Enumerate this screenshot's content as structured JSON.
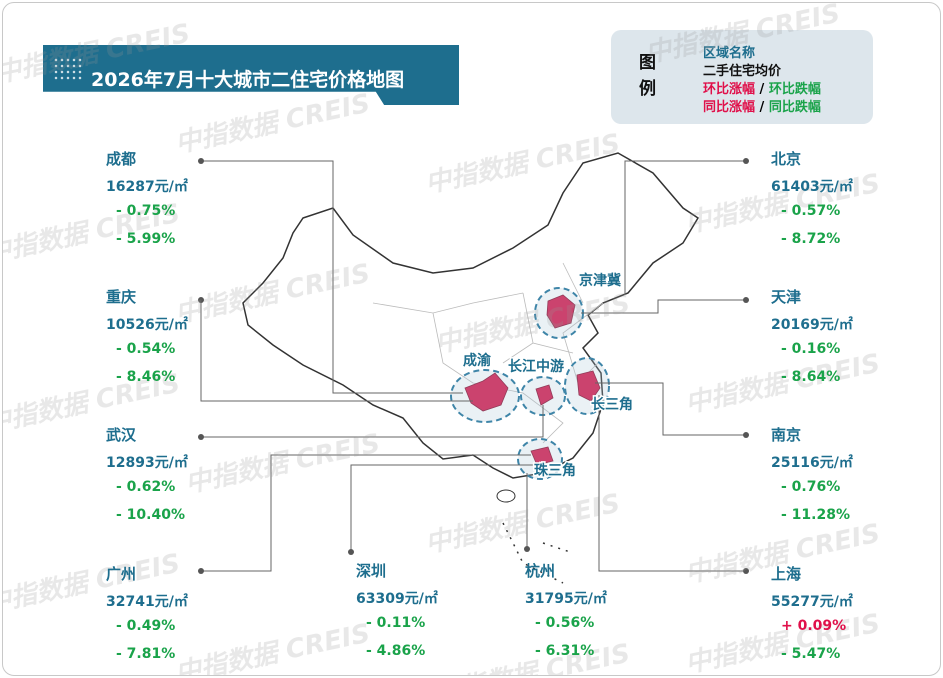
{
  "title": "2026年7月十大城市二住宅价格地图",
  "legend": {
    "heading": [
      "图",
      "例"
    ],
    "region_name": "区域名称",
    "avg_price": "二手住宅均价",
    "separator": "/",
    "mom_up": "环比涨幅",
    "mom_down": "环比跌幅",
    "yoy_up": "同比涨幅",
    "yoy_down": "同比跌幅"
  },
  "regions": [
    "京津冀",
    "成渝",
    "长江中游",
    "长三角",
    "珠三角"
  ],
  "watermark": "中指数据 CREIS",
  "cities": [
    {
      "name": "成都",
      "price": "16287元/㎡",
      "mom": "- 0.75%",
      "yoy": "- 5.99%"
    },
    {
      "name": "重庆",
      "price": "10526元/㎡",
      "mom": "- 0.54%",
      "yoy": "- 8.46%"
    },
    {
      "name": "武汉",
      "price": "12893元/㎡",
      "mom": "- 0.62%",
      "yoy": "- 10.40%"
    },
    {
      "name": "广州",
      "price": "32741元/㎡",
      "mom": "- 0.49%",
      "yoy": "- 7.81%"
    },
    {
      "name": "深圳",
      "price": "63309元/㎡",
      "mom": "- 0.11%",
      "yoy": "- 4.86%"
    },
    {
      "name": "杭州",
      "price": "31795元/㎡",
      "mom": "- 0.56%",
      "yoy": "- 6.31%"
    },
    {
      "name": "上海",
      "price": "55277元/㎡",
      "mom": "+ 0.09%",
      "yoy": "- 5.47%"
    },
    {
      "name": "南京",
      "price": "25116元/㎡",
      "mom": "- 0.76%",
      "yoy": "- 11.28%"
    },
    {
      "name": "天津",
      "price": "20169元/㎡",
      "mom": "- 0.16%",
      "yoy": "- 8.64%"
    },
    {
      "name": "北京",
      "price": "61403元/㎡",
      "mom": "- 0.57%",
      "yoy": "- 8.72%"
    }
  ]
}
